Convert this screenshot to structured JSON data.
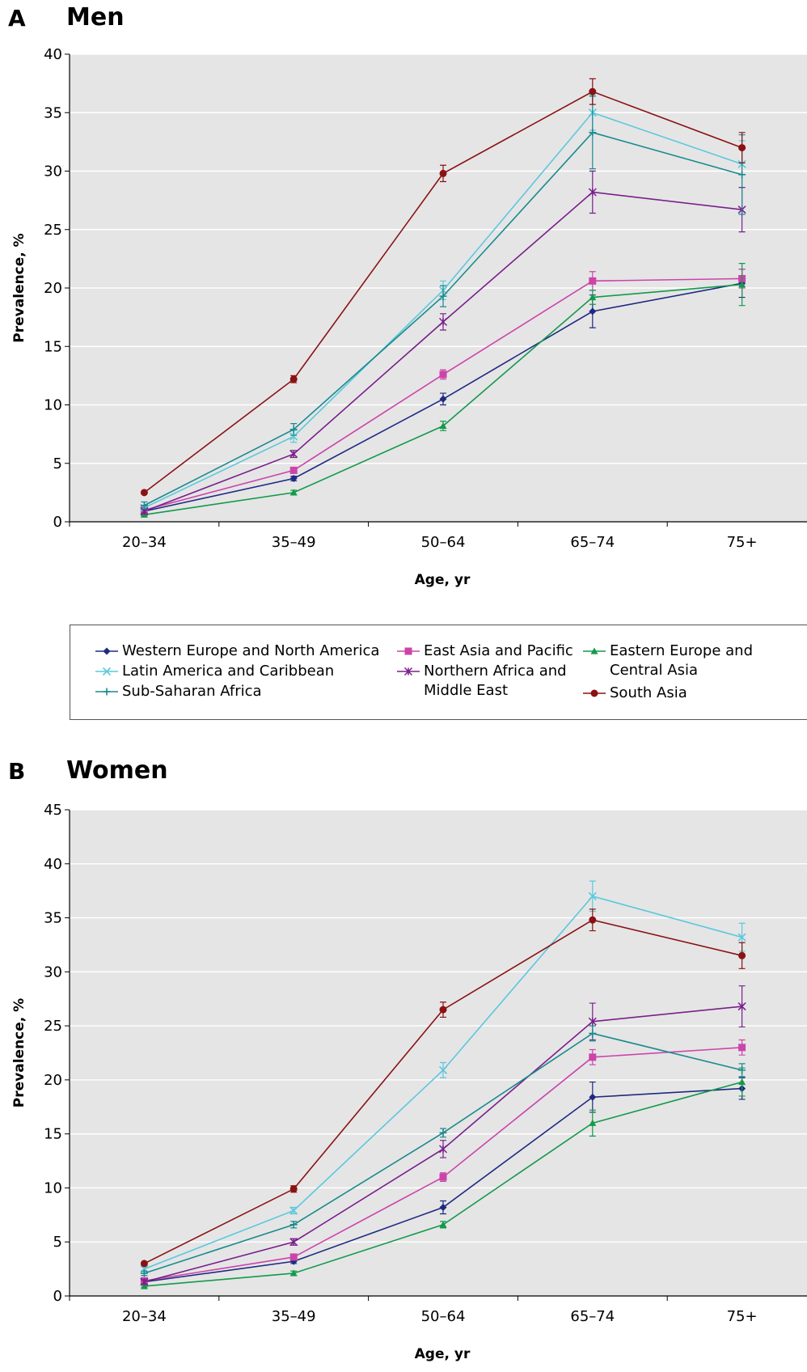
{
  "panels": {
    "a": {
      "letter": "A",
      "title": "Men"
    },
    "b": {
      "letter": "B",
      "title": "Women"
    }
  },
  "colors": {
    "Western Europe and North America": "#1f2a80",
    "East Asia and Pacific": "#cc44aa",
    "Eastern Europe and Central Asia": "#139a4a",
    "Latin America and Caribbean": "#5bc8dc",
    "Northern Africa and Middle East": "#7a1f8a",
    "Sub-Saharan Africa": "#1a8a8c",
    "South Asia": "#8b1212"
  },
  "legend": {
    "items": [
      {
        "label": "Western Europe and North America",
        "series": "Western Europe and North America",
        "marker": "diamond"
      },
      {
        "label": "Latin America and Caribbean",
        "series": "Latin America and Caribbean",
        "marker": "x"
      },
      {
        "label": "Sub-Saharan Africa",
        "series": "Sub-Saharan Africa",
        "marker": "plus"
      },
      {
        "label": "East Asia and Pacific",
        "series": "East Asia and Pacific",
        "marker": "square"
      },
      {
        "label": "Northern Africa and",
        "label2": "Middle East",
        "series": "Northern Africa and Middle East",
        "marker": "star"
      },
      {
        "label": "Eastern Europe and",
        "label2": "Central Asia",
        "series": "Eastern Europe and Central Asia",
        "marker": "triangle"
      },
      {
        "label": "South Asia",
        "series": "South Asia",
        "marker": "circle"
      }
    ]
  },
  "chart_data": [
    {
      "type": "line",
      "title": "Men",
      "xlabel": "Age, yr",
      "ylabel": "Prevalence, %",
      "categories": [
        "20–34",
        "35–49",
        "50–64",
        "65–74",
        "75+"
      ],
      "ylim": [
        0,
        40
      ],
      "yticks": [
        0,
        5,
        10,
        15,
        20,
        25,
        30,
        35,
        40
      ],
      "grid": true,
      "legend": "below",
      "series": [
        {
          "name": "Western Europe and North America",
          "marker": "diamond",
          "values": [
            0.9,
            3.7,
            10.5,
            18.0,
            20.4
          ],
          "err": [
            0.3,
            0.2,
            0.5,
            1.4,
            1.2
          ]
        },
        {
          "name": "East Asia and Pacific",
          "marker": "square",
          "values": [
            1.0,
            4.4,
            12.6,
            20.6,
            20.8
          ],
          "err": [
            0.2,
            0.2,
            0.4,
            0.8,
            0.8
          ]
        },
        {
          "name": "Eastern Europe and Central Asia",
          "marker": "triangle",
          "values": [
            0.6,
            2.5,
            8.2,
            19.2,
            20.3
          ],
          "err": [
            0.1,
            0.2,
            0.4,
            0.6,
            1.8
          ]
        },
        {
          "name": "Latin America and Caribbean",
          "marker": "x",
          "values": [
            1.2,
            7.3,
            19.8,
            35.0,
            30.6
          ],
          "err": [
            0.2,
            0.5,
            0.8,
            1.5,
            2.0
          ]
        },
        {
          "name": "Northern Africa and Middle East",
          "marker": "star",
          "values": [
            0.9,
            5.8,
            17.1,
            28.2,
            26.7
          ],
          "err": [
            0.2,
            0.3,
            0.7,
            1.8,
            1.9
          ]
        },
        {
          "name": "Sub-Saharan Africa",
          "marker": "plus",
          "values": [
            1.4,
            7.9,
            19.3,
            33.3,
            29.7
          ],
          "err": [
            0.3,
            0.5,
            0.9,
            3.1,
            3.4
          ]
        },
        {
          "name": "South Asia",
          "marker": "circle",
          "values": [
            2.5,
            12.2,
            29.8,
            36.8,
            32.0
          ],
          "err": [
            0.1,
            0.3,
            0.7,
            1.1,
            1.3
          ]
        }
      ]
    },
    {
      "type": "line",
      "title": "Women",
      "xlabel": "Age, yr",
      "ylabel": "Prevalence, %",
      "categories": [
        "20–34",
        "35–49",
        "50–64",
        "65–74",
        "75+"
      ],
      "ylim": [
        0,
        45
      ],
      "yticks": [
        0,
        5,
        10,
        15,
        20,
        25,
        30,
        35,
        40,
        45
      ],
      "grid": true,
      "series": [
        {
          "name": "Western Europe and North America",
          "marker": "diamond",
          "values": [
            1.3,
            3.2,
            8.2,
            18.4,
            19.2
          ],
          "err": [
            0.2,
            0.2,
            0.6,
            1.4,
            1.0
          ]
        },
        {
          "name": "East Asia and Pacific",
          "marker": "square",
          "values": [
            1.4,
            3.6,
            11.0,
            22.1,
            23.0
          ],
          "err": [
            0.2,
            0.2,
            0.4,
            0.7,
            0.7
          ]
        },
        {
          "name": "Eastern Europe and Central Asia",
          "marker": "triangle",
          "values": [
            0.9,
            2.1,
            6.6,
            16.0,
            19.8
          ],
          "err": [
            0.1,
            0.2,
            0.3,
            1.2,
            1.3
          ]
        },
        {
          "name": "Latin America and Caribbean",
          "marker": "x",
          "values": [
            2.5,
            7.9,
            20.9,
            37.0,
            33.2
          ],
          "err": [
            0.2,
            0.3,
            0.7,
            1.4,
            1.3
          ]
        },
        {
          "name": "Northern Africa and Middle East",
          "marker": "star",
          "values": [
            1.3,
            5.0,
            13.6,
            25.4,
            26.8
          ],
          "err": [
            0.2,
            0.3,
            0.8,
            1.7,
            1.9
          ]
        },
        {
          "name": "Sub-Saharan Africa",
          "marker": "plus",
          "values": [
            2.1,
            6.6,
            15.1,
            24.3,
            20.9
          ],
          "err": [
            0.2,
            0.3,
            0.4,
            0.7,
            0.6
          ]
        },
        {
          "name": "South Asia",
          "marker": "circle",
          "values": [
            3.0,
            9.9,
            26.5,
            34.8,
            31.5
          ],
          "err": [
            0.1,
            0.3,
            0.7,
            1.0,
            1.2
          ]
        }
      ]
    }
  ]
}
